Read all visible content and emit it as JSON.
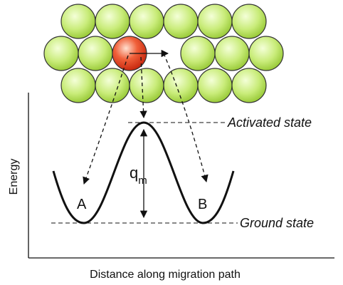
{
  "labels": {
    "activated": "Activated state",
    "ground": "Ground state",
    "barrier": "q",
    "barrier_sub": "m",
    "a": "A",
    "b": "B"
  },
  "axes": {
    "y": "Energy",
    "x": "Distance along migration path"
  }
}
